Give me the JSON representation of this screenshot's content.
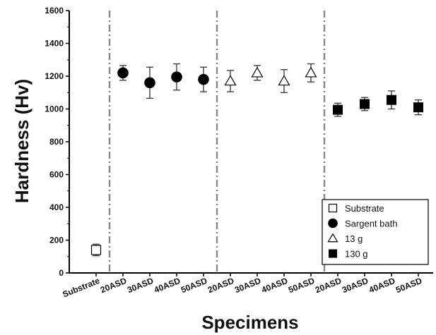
{
  "chart_data": {
    "type": "scatter",
    "xlabel": "Specimens",
    "ylabel": "Hardness (Hv)",
    "ylim": [
      0,
      1600
    ],
    "yticks": [
      0,
      200,
      400,
      600,
      800,
      1000,
      1200,
      1400,
      1600
    ],
    "categories": [
      "Substrate",
      "20ASD",
      "30ASD",
      "40ASD",
      "50ASD",
      "20ASD",
      "30ASD",
      "40ASD",
      "50ASD",
      "20ASD",
      "30ASD",
      "40ASD",
      "50ASD"
    ],
    "group_separators_after_index": [
      0,
      4,
      8
    ],
    "legend_position": "bottom-right",
    "series": [
      {
        "name": "Substrate",
        "marker": "open-square",
        "x_index": [
          0
        ],
        "values": [
          140
        ],
        "errors": [
          35
        ]
      },
      {
        "name": "Sargent bath",
        "marker": "filled-circle",
        "x_index": [
          1,
          2,
          3,
          4
        ],
        "values": [
          1220,
          1160,
          1195,
          1180
        ],
        "errors": [
          45,
          95,
          80,
          75
        ]
      },
      {
        "name": "13 g",
        "marker": "open-triangle",
        "x_index": [
          5,
          6,
          7,
          8
        ],
        "values": [
          1170,
          1220,
          1170,
          1220
        ],
        "errors": [
          65,
          45,
          70,
          55
        ]
      },
      {
        "name": "130 g",
        "marker": "filled-square",
        "x_index": [
          9,
          10,
          11,
          12
        ],
        "values": [
          995,
          1030,
          1055,
          1010
        ],
        "errors": [
          40,
          40,
          55,
          45
        ]
      }
    ]
  }
}
